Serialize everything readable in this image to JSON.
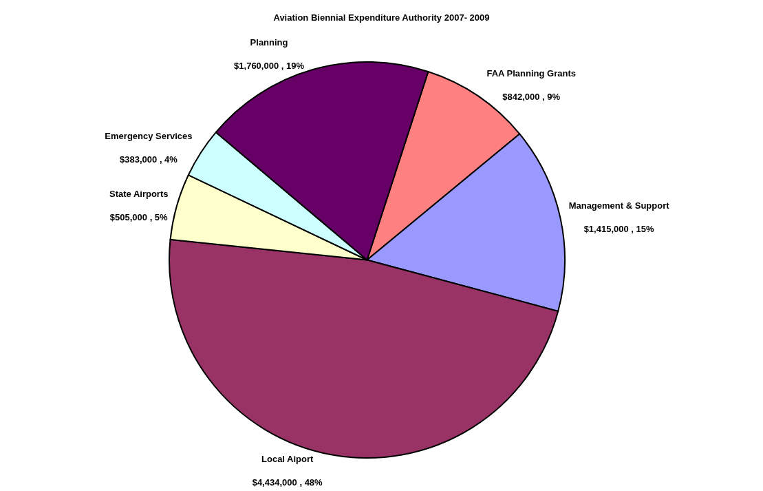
{
  "chart_data": {
    "type": "pie",
    "title": "Aviation Biennial Expenditure Authority 2007- 2009",
    "categories": [
      "FAA Planning Grants",
      "Management & Support",
      "Local Aiport",
      "State Airports",
      "Emergency Services",
      "Planning"
    ],
    "values": [
      842000,
      1415000,
      4434000,
      505000,
      383000,
      1760000
    ],
    "value_labels": [
      "$842,000 , 9%",
      "$1,415,000 , 15%",
      "$4,434,000 , 48%",
      "$505,000 , 5%",
      "$383,000 , 4%",
      "$1,760,000 , 19%"
    ],
    "colors": [
      "#ff8080",
      "#9999ff",
      "#993366",
      "#ffffcc",
      "#ccffff",
      "#660066"
    ],
    "legend": false
  }
}
